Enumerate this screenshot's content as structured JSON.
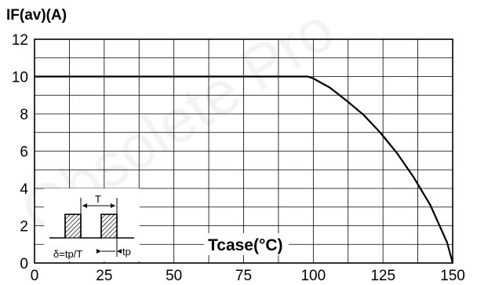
{
  "chart_data": {
    "type": "line",
    "ylabel": "IF(av)(A)",
    "xlabel": "Tcase(°C)",
    "xlim": [
      0,
      150
    ],
    "ylim": [
      0,
      12
    ],
    "x_ticks": [
      0,
      25,
      50,
      75,
      100,
      125,
      150
    ],
    "y_ticks": [
      0,
      2,
      4,
      6,
      8,
      10,
      12
    ],
    "grid": true,
    "series": [
      {
        "color": "#000000",
        "x": [
          0,
          98,
          100,
          106,
          112,
          118,
          124,
          130,
          136,
          142,
          148,
          150
        ],
        "y": [
          10,
          10,
          9.9,
          9.4,
          8.7,
          7.95,
          7.0,
          5.9,
          4.6,
          3.1,
          1.1,
          0
        ]
      }
    ],
    "watermark": "Obsolete Pro",
    "inset": {
      "delta_label": "δ=tp/T",
      "period_label": "T",
      "pulse_label": "tp"
    }
  }
}
